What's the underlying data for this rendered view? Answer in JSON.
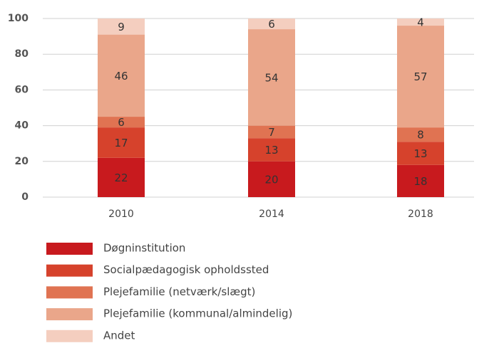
{
  "chart_data": {
    "type": "stacked_bar",
    "categories": [
      "2010",
      "2014",
      "2018"
    ],
    "series": [
      {
        "name": "Døgninstitution",
        "color": "#c81a1e",
        "values": [
          22,
          20,
          18
        ]
      },
      {
        "name": "Socialpædagogisk opholdssted",
        "color": "#d6422c",
        "values": [
          17,
          13,
          13
        ]
      },
      {
        "name": "Plejefamilie (netværk/slægt)",
        "color": "#e07352",
        "values": [
          6,
          7,
          8
        ]
      },
      {
        "name": "Plejefamilie (kommunal/almindelig)",
        "color": "#eaa68a",
        "values": [
          46,
          54,
          57
        ]
      },
      {
        "name": "Andet",
        "color": "#f4cebf",
        "values": [
          9,
          6,
          4
        ]
      }
    ],
    "ylim": [
      0,
      100
    ],
    "yticks": [
      0,
      20,
      40,
      60,
      80,
      100
    ],
    "grid": true,
    "legend": "bottom"
  }
}
